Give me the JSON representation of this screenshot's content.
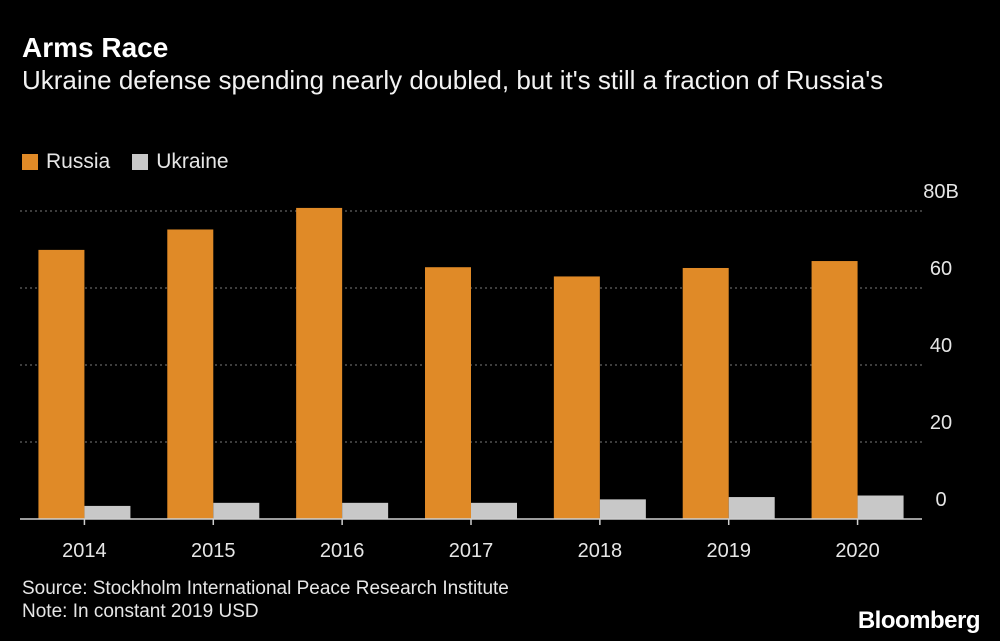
{
  "title": "Arms Race",
  "subtitle": "Ukraine defense spending nearly doubled, but it's still a fraction of Russia's",
  "legend": [
    {
      "label": "Russia",
      "color": "#E08A27"
    },
    {
      "label": "Ukraine",
      "color": "#C8C8C8"
    }
  ],
  "source": "Source: Stockholm International Peace Research Institute",
  "note": "Note: In constant 2019 USD",
  "brand": "Bloomberg",
  "chart_data": {
    "type": "bar",
    "categories": [
      "2014",
      "2015",
      "2016",
      "2017",
      "2018",
      "2019",
      "2020"
    ],
    "series": [
      {
        "name": "Russia",
        "color": "#E08A27",
        "values": [
          69.9,
          75.2,
          80.8,
          65.4,
          63.0,
          65.2,
          67.0
        ]
      },
      {
        "name": "Ukraine",
        "color": "#C8C8C8",
        "values": [
          3.4,
          4.2,
          4.2,
          4.2,
          5.1,
          5.7,
          6.1
        ]
      }
    ],
    "y_ticks": [
      {
        "value": 0,
        "label": "0"
      },
      {
        "value": 20,
        "label": "20"
      },
      {
        "value": 40,
        "label": "40"
      },
      {
        "value": 60,
        "label": "60"
      },
      {
        "value": 80,
        "label": "80B"
      }
    ],
    "ylim": [
      0,
      80
    ],
    "ylabel": "",
    "xlabel": "",
    "grid": true
  }
}
